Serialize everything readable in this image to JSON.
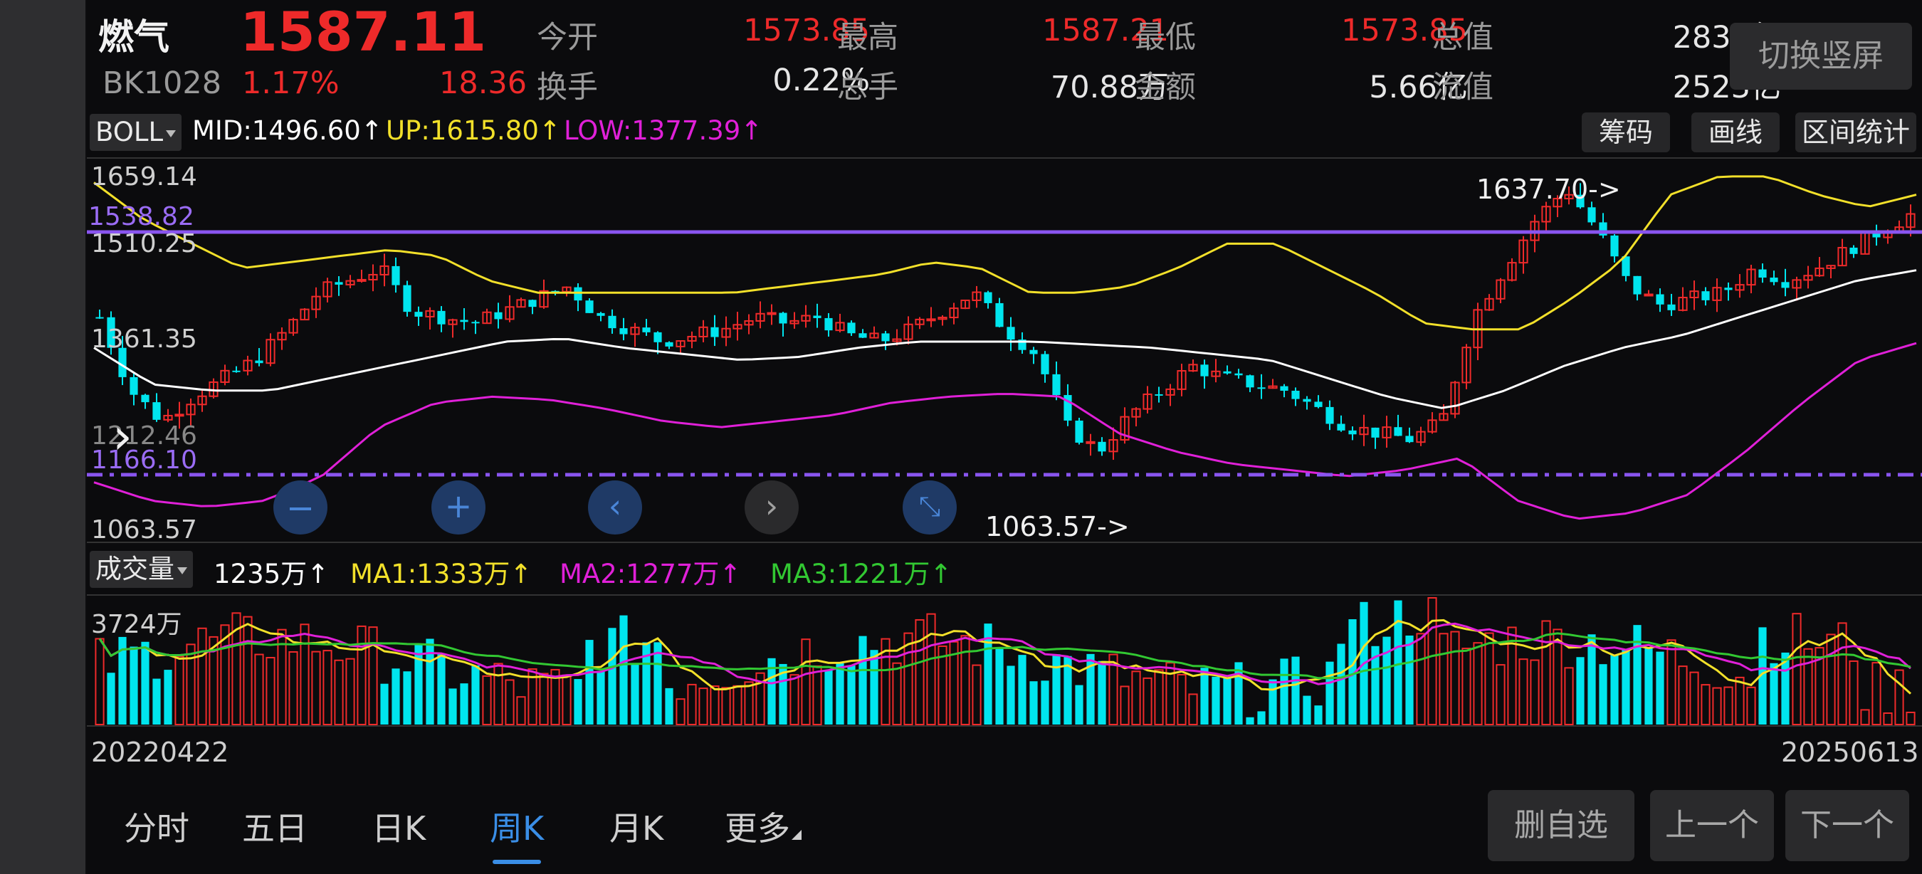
{
  "header": {
    "name": "燃气",
    "price": "1587.11",
    "code": "BK1028",
    "change_pct": "1.17%",
    "change": "18.36",
    "stats": [
      {
        "label": "今开",
        "value": "1573.85",
        "color": "red"
      },
      {
        "label": "最高",
        "value": "1587.21",
        "color": "red"
      },
      {
        "label": "最低",
        "value": "1573.85",
        "color": "red"
      },
      {
        "label": "总值",
        "value": "2831亿",
        "color": "white"
      },
      {
        "label": "换手",
        "value": "0.22%",
        "color": "white"
      },
      {
        "label": "总手",
        "value": "70.88万",
        "color": "white"
      },
      {
        "label": "金额",
        "value": "5.66亿",
        "color": "white"
      },
      {
        "label": "流值",
        "value": "2523亿",
        "color": "white"
      }
    ],
    "switch_button": "切换竖屏"
  },
  "indicator_bar": {
    "dropdown": "BOLL",
    "mid": "MID:1496.60↑",
    "up": "UP:1615.80↑",
    "low": "LOW:1377.39↑",
    "buttons": [
      "筹码",
      "画线",
      "区间统计"
    ]
  },
  "price_chart": {
    "y_labels": [
      "1659.14",
      "1510.25",
      "1361.35",
      "1212.46",
      "1063.57"
    ],
    "line_levels": [
      "1538.82",
      "1166.10"
    ],
    "max_label": "1637.70->",
    "min_label": "1063.57->",
    "chevron": "›"
  },
  "volume_bar": {
    "dropdown": "成交量",
    "vol": "1235万↑",
    "ma1": "MA1:1333万↑",
    "ma2": "MA2:1277万↑",
    "ma3": "MA3:1221万↑"
  },
  "volume_chart": {
    "y_label": "3724万"
  },
  "date_axis": {
    "start": "20220422",
    "end": "20250613"
  },
  "tabs": {
    "items": [
      "分时",
      "五日",
      "日K",
      "周K",
      "月K",
      "更多"
    ],
    "active": "周K"
  },
  "bottom_buttons": [
    "删自选",
    "上一个",
    "下一个"
  ],
  "colors": {
    "up_red": "#ee2a2a",
    "down_cyan": "#00e5ee",
    "boll_up": "#f2e02a",
    "boll_mid": "#ffffff",
    "boll_low": "#e020d8",
    "ma1": "#f2e02a",
    "ma2": "#e020d8",
    "ma3": "#32c832",
    "level_line": "#8a55f0",
    "tab_active": "#3a8ee6"
  },
  "chart_data": {
    "type": "candlestick",
    "period": "weekly",
    "y_range": [
      1063.57,
      1659.14
    ],
    "x_range": [
      "20220422",
      "20250613"
    ],
    "close_price_trend": [
      1420,
      1300,
      1250,
      1290,
      1320,
      1350,
      1400,
      1460,
      1480,
      1500,
      1430,
      1420,
      1410,
      1430,
      1450,
      1470,
      1420,
      1400,
      1380,
      1390,
      1400,
      1420,
      1410,
      1420,
      1390,
      1380,
      1400,
      1430,
      1460,
      1400,
      1360,
      1240,
      1200,
      1260,
      1300,
      1340,
      1320,
      1310,
      1300,
      1270,
      1240,
      1230,
      1220,
      1250,
      1420,
      1500,
      1580,
      1630,
      1560,
      1470,
      1440,
      1450,
      1460,
      1500,
      1480,
      1500,
      1530,
      1560,
      1587.11
    ],
    "boll_up_trend": [
      1640,
      1580,
      1540,
      1500,
      1510,
      1520,
      1530,
      1520,
      1480,
      1460,
      1460,
      1460,
      1460,
      1460,
      1470,
      1480,
      1490,
      1510,
      1500,
      1460,
      1460,
      1470,
      1500,
      1540,
      1540,
      1500,
      1460,
      1410,
      1400,
      1400,
      1450,
      1510,
      1620,
      1650,
      1650,
      1620,
      1600,
      1620
    ],
    "boll_mid_trend": [
      1370,
      1310,
      1300,
      1300,
      1320,
      1340,
      1360,
      1380,
      1385,
      1370,
      1360,
      1350,
      1355,
      1370,
      1380,
      1380,
      1380,
      1375,
      1370,
      1360,
      1350,
      1320,
      1290,
      1270,
      1300,
      1340,
      1370,
      1390,
      1420,
      1450,
      1480,
      1496.6
    ],
    "boll_low_trend": [
      1150,
      1120,
      1110,
      1120,
      1160,
      1240,
      1280,
      1290,
      1285,
      1270,
      1250,
      1240,
      1250,
      1260,
      1280,
      1290,
      1295,
      1290,
      1230,
      1200,
      1180,
      1170,
      1160,
      1170,
      1190,
      1120,
      1090,
      1100,
      1130,
      1200,
      1280,
      1350,
      1377.39
    ],
    "volume_max": "3724万"
  }
}
